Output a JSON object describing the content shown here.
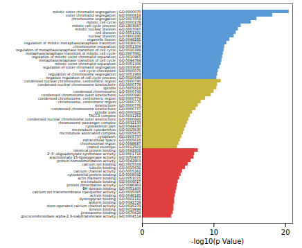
{
  "chart_data": {
    "type": "bar",
    "orientation": "horizontal",
    "xlabel": "-log10(p Value)",
    "categories": [
      "mitotic sister chromatid segregation | GO:0000070",
      "sister chromatid segregation | GO:0000819",
      "chromosome segregation | GO:0007059",
      "mitotic cell cycle | GO:0000278",
      "mitotic cell cycle process | GO:1903047",
      "mitotic nuclear division | GO:0007067",
      "cell division | GO:0051301",
      "nuclear division | GO:0000280",
      "organelle fission | GO:0048285",
      "regulation of mitotic metaphase/anaphase transition | GO:0030071",
      "chromosome separation | GO:0051304",
      "regulation of metaphase/anaphase transition of cell cycle | GO:0010389",
      "metaphase/anaphase transition of mitotic cell cycle | GO:0007091",
      "regulation of mitotic sister chromatid separation | GO:0010965",
      "metaphase/anaphase transition of cell cycle | GO:0044784",
      "mitotic sister chromatid separation | GO:0051306",
      "regulation of sister chromatid segregation | GO:0033047",
      "cell cycle checkpoint | GO:0000075",
      "regulation of chromosome segregation | GO:0051983",
      "negative regulation of cell cycle process | GO:0010948",
      "condensed nuclear chromosome, centromeric region | GO:0000790",
      "condensed nuclear chromosome kinetochore | GO:0000778",
      "spindle | GO:0005819",
      "condensed chromosome | GO:0000793",
      "condensed chromosome outer kinetochore | GO:0000940",
      "condensed chromosome, centromeric region | GO:0000779",
      "chromosome, centromeric region | GO:0000775",
      "kinetochore | GO:0000776",
      "condensed chromosome kinetochore | GO:0000777",
      "spindle pole | GO:0000922",
      "TACC3 complex | GO:0031262",
      "condensed nuclear chromosome outer kinetochore | GO:0000943",
      "chromosome passenger complex | GO:0032133",
      "cytoskeleton part | GO:0044430",
      "microtubule cytoskeleton | GO:0015630",
      "microtubule associated complex | GO:0005875",
      "cytoplasm | GO:0005737",
      "extracellular space | GO:0005615",
      "chromosomal region | GO:0098687",
      "coated envelope | GO:0012503",
      "identical protein binding | GO:0042802",
      "2'-5'-oligoadenylate synthetase activity | GO:0001716",
      "arachidonate 15-lipoxygenase activity | GO:0050473",
      "protein homodimerization activity | GO:0042803",
      "calcium ion binding | GO:0005509",
      "tubulin binding | GO:0015631",
      "calcium channel activity | GO:0005262",
      "cytoskeletal protein binding | GO:0008092",
      "actin filament binding | GO:0051015",
      "microtubule binding | GO:0008017",
      "protein dimerization activity | GO:0046983",
      "BH domain binding | GO:0051400",
      "calcium ion transmembrane transporter activity | GO:0015085",
      "activin binding | GO:0048185",
      "dystroglycan binding | GO:0002162",
      "ankyrin binding | GO:0042729",
      "store-operated calcium channel activity | GO:0015279",
      "kinesin binding | GO:0019894",
      "proteasome binding | GO:0070628",
      "glucocerebrosidase alpha-2,3-sialyltransferase activity | GO:0004514"
    ],
    "values": [
      20.5,
      18.2,
      16.0,
      15.2,
      13.8,
      13.4,
      13.1,
      12.8,
      12.2,
      11.8,
      11.5,
      11.4,
      11.3,
      11.2,
      11.1,
      11.0,
      10.8,
      10.6,
      10.5,
      10.4,
      11.0,
      10.5,
      10.4,
      10.0,
      9.6,
      8.8,
      8.2,
      7.8,
      7.5,
      7.0,
      6.7,
      6.5,
      6.3,
      6.1,
      5.9,
      5.7,
      5.5,
      5.3,
      5.1,
      4.9,
      7.8,
      7.3,
      7.2,
      6.8,
      6.4,
      6.0,
      5.6,
      5.4,
      5.2,
      5.0,
      4.9,
      4.8,
      4.7,
      4.6,
      4.5,
      4.5,
      4.4,
      4.4,
      4.3,
      4.1
    ],
    "colors": [
      "#5B9BD5",
      "#5B9BD5",
      "#5B9BD5",
      "#5B9BD5",
      "#5B9BD5",
      "#5B9BD5",
      "#5B9BD5",
      "#5B9BD5",
      "#5B9BD5",
      "#5B9BD5",
      "#5B9BD5",
      "#5B9BD5",
      "#5B9BD5",
      "#5B9BD5",
      "#5B9BD5",
      "#5B9BD5",
      "#5B9BD5",
      "#5B9BD5",
      "#5B9BD5",
      "#5B9BD5",
      "#C8B840",
      "#C8B840",
      "#C8B840",
      "#C8B840",
      "#C8B840",
      "#C8B840",
      "#C8B840",
      "#C8B840",
      "#C8B840",
      "#C8B840",
      "#C8B840",
      "#C8B840",
      "#C8B840",
      "#C8B840",
      "#C8B840",
      "#C8B840",
      "#C8B840",
      "#C8B840",
      "#C8B840",
      "#C8B840",
      "#E04040",
      "#E04040",
      "#E04040",
      "#E04040",
      "#E04040",
      "#E04040",
      "#E04040",
      "#E04040",
      "#E04040",
      "#E04040",
      "#E04040",
      "#E04040",
      "#E04040",
      "#E04040",
      "#E04040",
      "#E04040",
      "#E04040",
      "#E04040",
      "#E04040",
      "#E04040"
    ],
    "xlim": [
      0,
      21
    ],
    "xticks": [
      0,
      10,
      20
    ],
    "grid": false
  }
}
